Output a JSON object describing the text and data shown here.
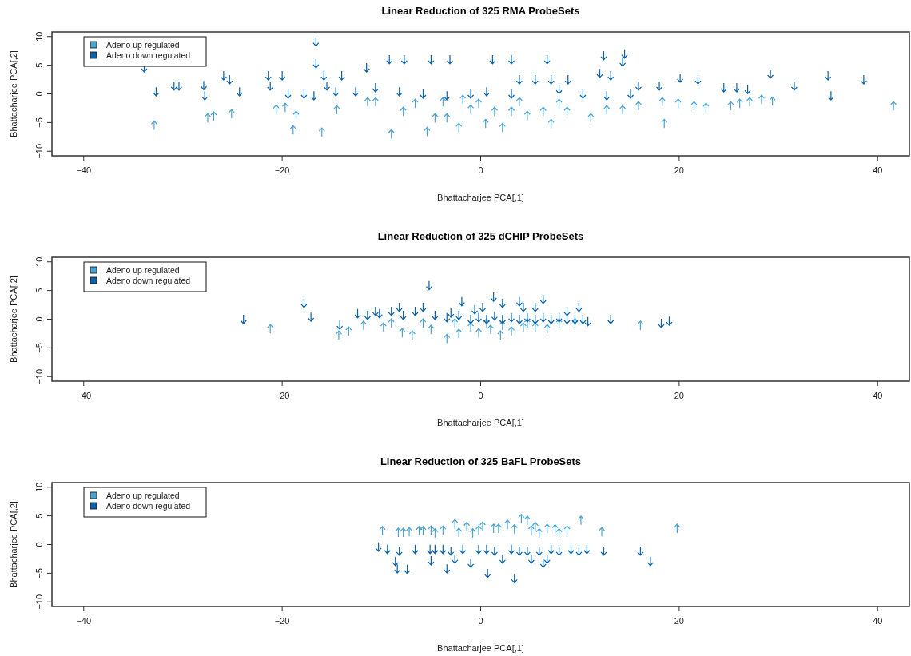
{
  "chart_data": [
    {
      "type": "scatter",
      "title": "Linear Reduction of 325 RMA ProbeSets",
      "xlabel": "Bhattacharjee PCA[,1]",
      "ylabel": "Bhattacharjee PCA[,2]",
      "xlim": [
        -43.2,
        43.2
      ],
      "ylim": [
        -10.8,
        10.8
      ],
      "xticks": [
        -40,
        -20,
        0,
        20,
        40
      ],
      "yticks": [
        -10,
        -5,
        0,
        5,
        10
      ],
      "grid": false,
      "legend": "top left",
      "series": [
        {
          "name": "Adeno up regulated",
          "color": "#4aa3cf",
          "x": [
            -32.9,
            -27.5,
            -26.9,
            -25.1,
            -20.6,
            -19.7,
            -18.9,
            -18.6,
            -16,
            -14.5,
            -11.4,
            -9,
            -7.8,
            -5.4,
            -4.6,
            -3.4,
            -2.2,
            -1,
            0.5,
            1.4,
            2.2,
            3.1,
            4.7,
            6.3,
            7.1,
            8.7,
            11.1,
            12.7,
            14.3,
            15.9,
            18.5,
            18.3,
            19.9,
            21.5,
            22.7,
            25.2,
            26.1,
            27.1,
            28.3,
            29.4,
            41.6,
            -10.6,
            -6.6,
            -3.8,
            -1.8,
            -0.2,
            3.9,
            7.9
          ],
          "values": [
            -5.5,
            -4.2,
            -3.9,
            -3.5,
            -2.7,
            -2.4,
            -6.3,
            -3.8,
            -6.7,
            -2.8,
            -1.4,
            -7,
            -3.1,
            -6.6,
            -4.2,
            -4.2,
            -5.9,
            -2.7,
            -5.2,
            -3.1,
            -5.9,
            -3.1,
            -3.8,
            -3.1,
            -5.2,
            -3.1,
            -4.2,
            -2.8,
            -2.8,
            -2.1,
            -5.2,
            -1.4,
            -1.7,
            -2.1,
            -2.4,
            -2.1,
            -1.7,
            -1.4,
            -1,
            -1.3,
            -2.1,
            -1.4,
            -1.7,
            -1.4,
            -1,
            -1.7,
            -1.4,
            -1.7
          ]
        },
        {
          "name": "Adeno down regulated",
          "color": "#0a62a8",
          "x": [
            -33.9,
            -32.7,
            -30.9,
            -30.4,
            -27.9,
            -27.8,
            -25.9,
            -25.3,
            -24.3,
            -21.4,
            -21.2,
            -20,
            -16.6,
            -16.6,
            -15.8,
            -15.5,
            -14,
            -11.5,
            -9.2,
            -7.7,
            -5,
            -3.1,
            1.2,
            3.1,
            6.7,
            12.4,
            14.5,
            14.3,
            3.9,
            5.5,
            7.1,
            8.8,
            12,
            13.1,
            15.9,
            18,
            20.1,
            21.9,
            24.5,
            25.8,
            26.9,
            29.2,
            31.6,
            35,
            35.3,
            38.6,
            7.9,
            10.3,
            12.7,
            15.1,
            -8.2,
            -5.8,
            -3.4,
            -1,
            0.6,
            3.1,
            -10.6,
            -12.6,
            -14.6,
            -17.8,
            -16.8,
            -19.4
          ],
          "values": [
            4.6,
            0.4,
            1.4,
            1.4,
            1.5,
            -0.3,
            3.2,
            2.5,
            0.4,
            3.2,
            1.4,
            3.2,
            9.1,
            5.3,
            3.2,
            1.4,
            3.2,
            4.6,
            6,
            6,
            6,
            6,
            6,
            6,
            6,
            6.7,
            7,
            5.6,
            2.5,
            2.5,
            2.5,
            2.5,
            3.6,
            3.2,
            1.4,
            1.4,
            2.8,
            2.5,
            1.1,
            1.1,
            0.8,
            3.5,
            1.4,
            3.2,
            -0.3,
            2.5,
            0.8,
            0,
            -0.3,
            0,
            0.4,
            0,
            -0.3,
            0,
            0.4,
            0,
            1.1,
            0.4,
            0.4,
            0,
            -0.3,
            0
          ]
        }
      ]
    },
    {
      "type": "scatter",
      "title": "Linear Reduction of 325 dCHIP ProbeSets",
      "xlabel": "Bhattacharjee PCA[,1]",
      "ylabel": "Bhattacharjee PCA[,2]",
      "xlim": [
        -43.2,
        43.2
      ],
      "ylim": [
        -10.8,
        10.8
      ],
      "xticks": [
        -40,
        -20,
        0,
        20,
        40
      ],
      "yticks": [
        -10,
        -5,
        0,
        5,
        10
      ],
      "grid": false,
      "legend": "top left",
      "series": [
        {
          "name": "Adeno up regulated",
          "color": "#4aa3cf",
          "x": [
            -21.2,
            -14.3,
            -13.3,
            -11.8,
            -9.8,
            -7.9,
            -6.9,
            -5.8,
            -5,
            -3.4,
            -2.2,
            -1,
            -0.2,
            1,
            2,
            3.1,
            4.3,
            5.5,
            6.7,
            7.9,
            9.5,
            16.1,
            -2.6,
            0.6,
            2.2,
            4.7,
            -9
          ],
          "values": [
            -1.7,
            -2.8,
            -2.1,
            -1.1,
            -1.4,
            -2.4,
            -2.8,
            -0.7,
            -1.8,
            -3.4,
            -2.5,
            -1.4,
            -2.4,
            -1.8,
            -2.8,
            -2.1,
            -1.4,
            -1.4,
            -1.7,
            -0.7,
            -0.7,
            -1.1,
            -0.7,
            -0.7,
            -1.1,
            -0.7,
            -0.7
          ]
        },
        {
          "name": "Adeno down regulated",
          "color": "#0a62a8",
          "x": [
            -23.9,
            -17.8,
            -17.1,
            -14.2,
            -12.4,
            -11.4,
            -10.2,
            -9,
            -7.8,
            -6.6,
            -5.2,
            -4.6,
            -3.4,
            -2.2,
            -1,
            -0.2,
            0.6,
            1.4,
            2.2,
            3.1,
            3.9,
            4.7,
            5.5,
            6.3,
            7.1,
            7.9,
            8.7,
            9.5,
            10.3,
            10.8,
            13.1,
            18.2,
            19,
            -1.9,
            1.3,
            2.2,
            3.9,
            4.3,
            6.3,
            9.9,
            5.5,
            -5.8,
            -8.2,
            -10.6,
            -3,
            -0.6,
            0.2,
            8.7
          ],
          "values": [
            0,
            2.8,
            0.4,
            -1,
            1,
            0.7,
            1,
            1.4,
            0.7,
            1.4,
            5.9,
            0.7,
            0.3,
            0.7,
            0,
            0.3,
            0,
            0.6,
            0,
            0.3,
            0,
            0.3,
            0,
            0.3,
            0,
            0.3,
            0,
            0,
            0,
            -0.4,
            0,
            -0.7,
            -0.3,
            3.1,
            3.9,
            2.8,
            3.1,
            2.1,
            3.5,
            2.1,
            2.1,
            2.1,
            2.1,
            1.4,
            1.1,
            1.7,
            2.1,
            1.4
          ]
        }
      ]
    },
    {
      "type": "scatter",
      "title": "Linear Reduction of 325 BaFL ProbeSets",
      "xlabel": "Bhattacharjee PCA[,1]",
      "ylabel": "Bhattacharjee PCA[,2]",
      "xlim": [
        -43.2,
        43.2
      ],
      "ylim": [
        -10.8,
        10.8
      ],
      "xticks": [
        -40,
        -20,
        0,
        20,
        40
      ],
      "yticks": [
        -10,
        -5,
        0,
        5,
        10
      ],
      "grid": false,
      "legend": "top left",
      "series": [
        {
          "name": "Adeno up regulated",
          "color": "#4aa3cf",
          "x": [
            -9.9,
            -8.3,
            -7.2,
            -6.2,
            -5,
            -3.8,
            -2.6,
            -1.4,
            -0.8,
            0.2,
            1.3,
            2.7,
            4.1,
            4.7,
            5.5,
            6.7,
            7.5,
            8.7,
            10.1,
            12.2,
            19.8,
            -7.8,
            -5.8,
            -4.6,
            -2.2,
            -0.2,
            1.8,
            3.4,
            5.1,
            7.9,
            5.9
          ],
          "values": [
            2.4,
            2.1,
            2.2,
            2.4,
            2.5,
            2.5,
            3.6,
            3.1,
            2,
            3.2,
            2.8,
            3.5,
            4.5,
            4.2,
            3.1,
            2.8,
            2.7,
            2.5,
            4.2,
            2.2,
            2.8,
            2.1,
            2.4,
            2,
            2.1,
            2.5,
            2.8,
            2.7,
            2.5,
            2,
            2
          ]
        },
        {
          "name": "Adeno down regulated",
          "color": "#0a62a8",
          "x": [
            -10.3,
            -9.4,
            -8.6,
            -8.2,
            -7.4,
            -6.6,
            -5.1,
            -5,
            -3.8,
            -2.6,
            -1.8,
            -1,
            -0.2,
            0.7,
            1.4,
            2.2,
            3.4,
            3.9,
            5.1,
            5.9,
            6.7,
            7.9,
            9.1,
            10.7,
            12.4,
            16.1,
            17.1,
            -8.4,
            -3.4,
            6.3,
            -4.6,
            -3,
            0.6,
            3.1,
            4.7,
            7.1,
            9.9
          ],
          "values": [
            -0.4,
            -0.8,
            -2.9,
            -1.1,
            -4.3,
            -0.8,
            -0.8,
            -2.8,
            -0.8,
            -2.5,
            -0.8,
            -3.2,
            -0.8,
            -5,
            -1.1,
            -2.5,
            -5.9,
            -1.1,
            -2.5,
            -1.1,
            -2.5,
            -1.1,
            -0.8,
            -0.8,
            -1.1,
            -1.1,
            -2.9,
            -4.2,
            -4.2,
            -3.2,
            -0.8,
            -1.1,
            -0.8,
            -0.8,
            -1.1,
            -0.8,
            -1.1
          ]
        }
      ]
    }
  ]
}
